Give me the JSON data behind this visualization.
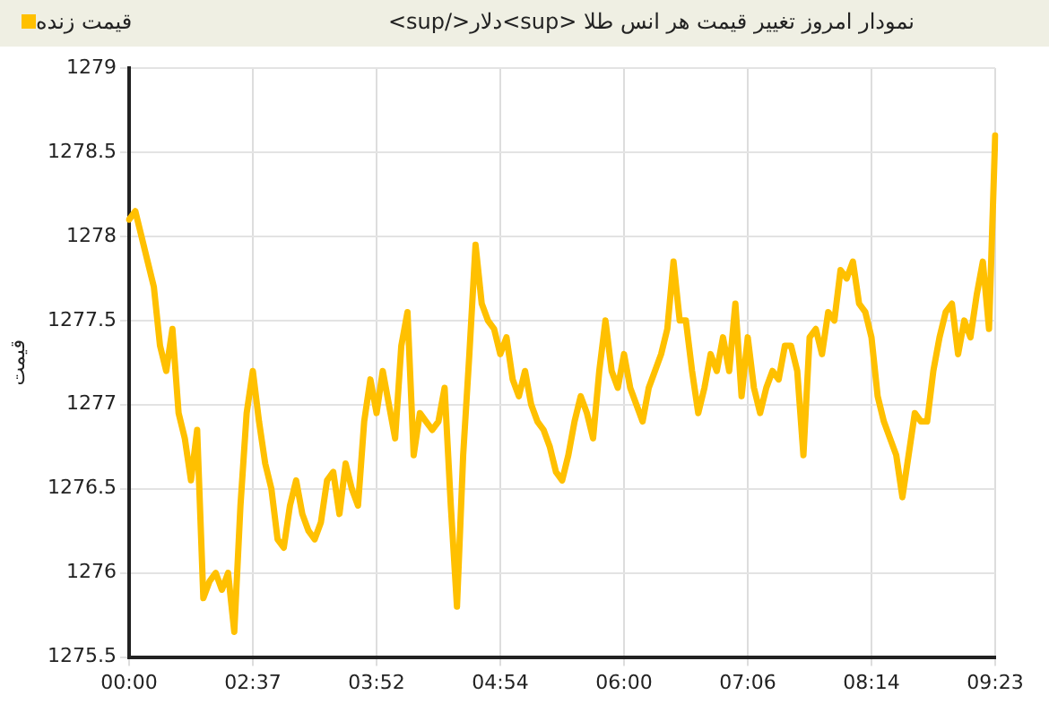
{
  "chart_data": {
    "type": "line",
    "title": "نمودار امروز تغییر قیمت هر انس طلا <sup>دلار</sup>",
    "ylabel": "قیمت",
    "legend": "top left",
    "grid": true,
    "marker": "none",
    "line_style": "solid",
    "categories": [
      "00:00",
      null,
      null,
      null,
      null,
      null,
      null,
      null,
      null,
      null,
      null,
      null,
      null,
      null,
      null,
      null,
      null,
      null,
      null,
      null,
      "02:37",
      null,
      null,
      null,
      null,
      null,
      null,
      null,
      null,
      null,
      null,
      null,
      null,
      null,
      null,
      null,
      null,
      null,
      null,
      null,
      "03:52",
      null,
      null,
      null,
      null,
      null,
      null,
      null,
      null,
      null,
      null,
      null,
      null,
      null,
      null,
      null,
      null,
      null,
      null,
      null,
      "04:54",
      null,
      null,
      null,
      null,
      null,
      null,
      null,
      null,
      null,
      null,
      null,
      null,
      null,
      null,
      null,
      null,
      null,
      null,
      null,
      "06:00",
      null,
      null,
      null,
      null,
      null,
      null,
      null,
      null,
      null,
      null,
      null,
      null,
      null,
      null,
      null,
      null,
      null,
      null,
      null,
      "07:06",
      null,
      null,
      null,
      null,
      null,
      null,
      null,
      null,
      null,
      null,
      null,
      null,
      null,
      null,
      null,
      null,
      null,
      null,
      null,
      "08:14",
      null,
      null,
      null,
      null,
      null,
      null,
      null,
      null,
      null,
      null,
      null,
      null,
      null,
      null,
      null,
      null,
      null,
      null,
      null,
      "09:23"
    ],
    "ylim": [
      1275.5,
      1279
    ],
    "yticks": [
      1275.5,
      1276,
      1276.5,
      1277,
      1277.5,
      1278,
      1278.5,
      1279
    ],
    "series": [
      {
        "name": "قیمت زنده",
        "color": "#ffc000",
        "values": [
          1278.1,
          1278.15,
          1278.0,
          1277.85,
          1277.7,
          1277.35,
          1277.2,
          1277.45,
          1276.95,
          1276.8,
          1276.55,
          1276.85,
          1275.85,
          1275.95,
          1276.0,
          1275.9,
          1276.0,
          1275.65,
          1276.4,
          1276.95,
          1277.2,
          1276.9,
          1276.65,
          1276.5,
          1276.2,
          1276.15,
          1276.4,
          1276.55,
          1276.35,
          1276.25,
          1276.2,
          1276.3,
          1276.55,
          1276.6,
          1276.35,
          1276.65,
          1276.5,
          1276.4,
          1276.9,
          1277.15,
          1276.95,
          1277.2,
          1277.0,
          1276.8,
          1277.35,
          1277.55,
          1276.7,
          1276.95,
          1276.9,
          1276.85,
          1276.9,
          1277.1,
          1276.4,
          1275.8,
          1276.7,
          1277.3,
          1277.95,
          1277.6,
          1277.5,
          1277.45,
          1277.3,
          1277.4,
          1277.15,
          1277.05,
          1277.2,
          1277.0,
          1276.9,
          1276.85,
          1276.75,
          1276.6,
          1276.55,
          1276.7,
          1276.9,
          1277.05,
          1276.95,
          1276.8,
          1277.2,
          1277.5,
          1277.2,
          1277.1,
          1277.3,
          1277.1,
          1277.0,
          1276.9,
          1277.1,
          1277.2,
          1277.3,
          1277.45,
          1277.85,
          1277.5,
          1277.5,
          1277.2,
          1276.95,
          1277.1,
          1277.3,
          1277.2,
          1277.4,
          1277.2,
          1277.6,
          1277.05,
          1277.4,
          1277.1,
          1276.95,
          1277.1,
          1277.2,
          1277.15,
          1277.35,
          1277.35,
          1277.2,
          1276.7,
          1277.4,
          1277.45,
          1277.3,
          1277.55,
          1277.5,
          1277.8,
          1277.75,
          1277.85,
          1277.6,
          1277.55,
          1277.4,
          1277.05,
          1276.9,
          1276.8,
          1276.7,
          1276.45,
          1276.7,
          1276.95,
          1276.9,
          1276.9,
          1277.2,
          1277.4,
          1277.55,
          1277.6,
          1277.3,
          1277.5,
          1277.4,
          1277.65,
          1277.85,
          1277.45,
          1278.6
        ]
      }
    ]
  }
}
